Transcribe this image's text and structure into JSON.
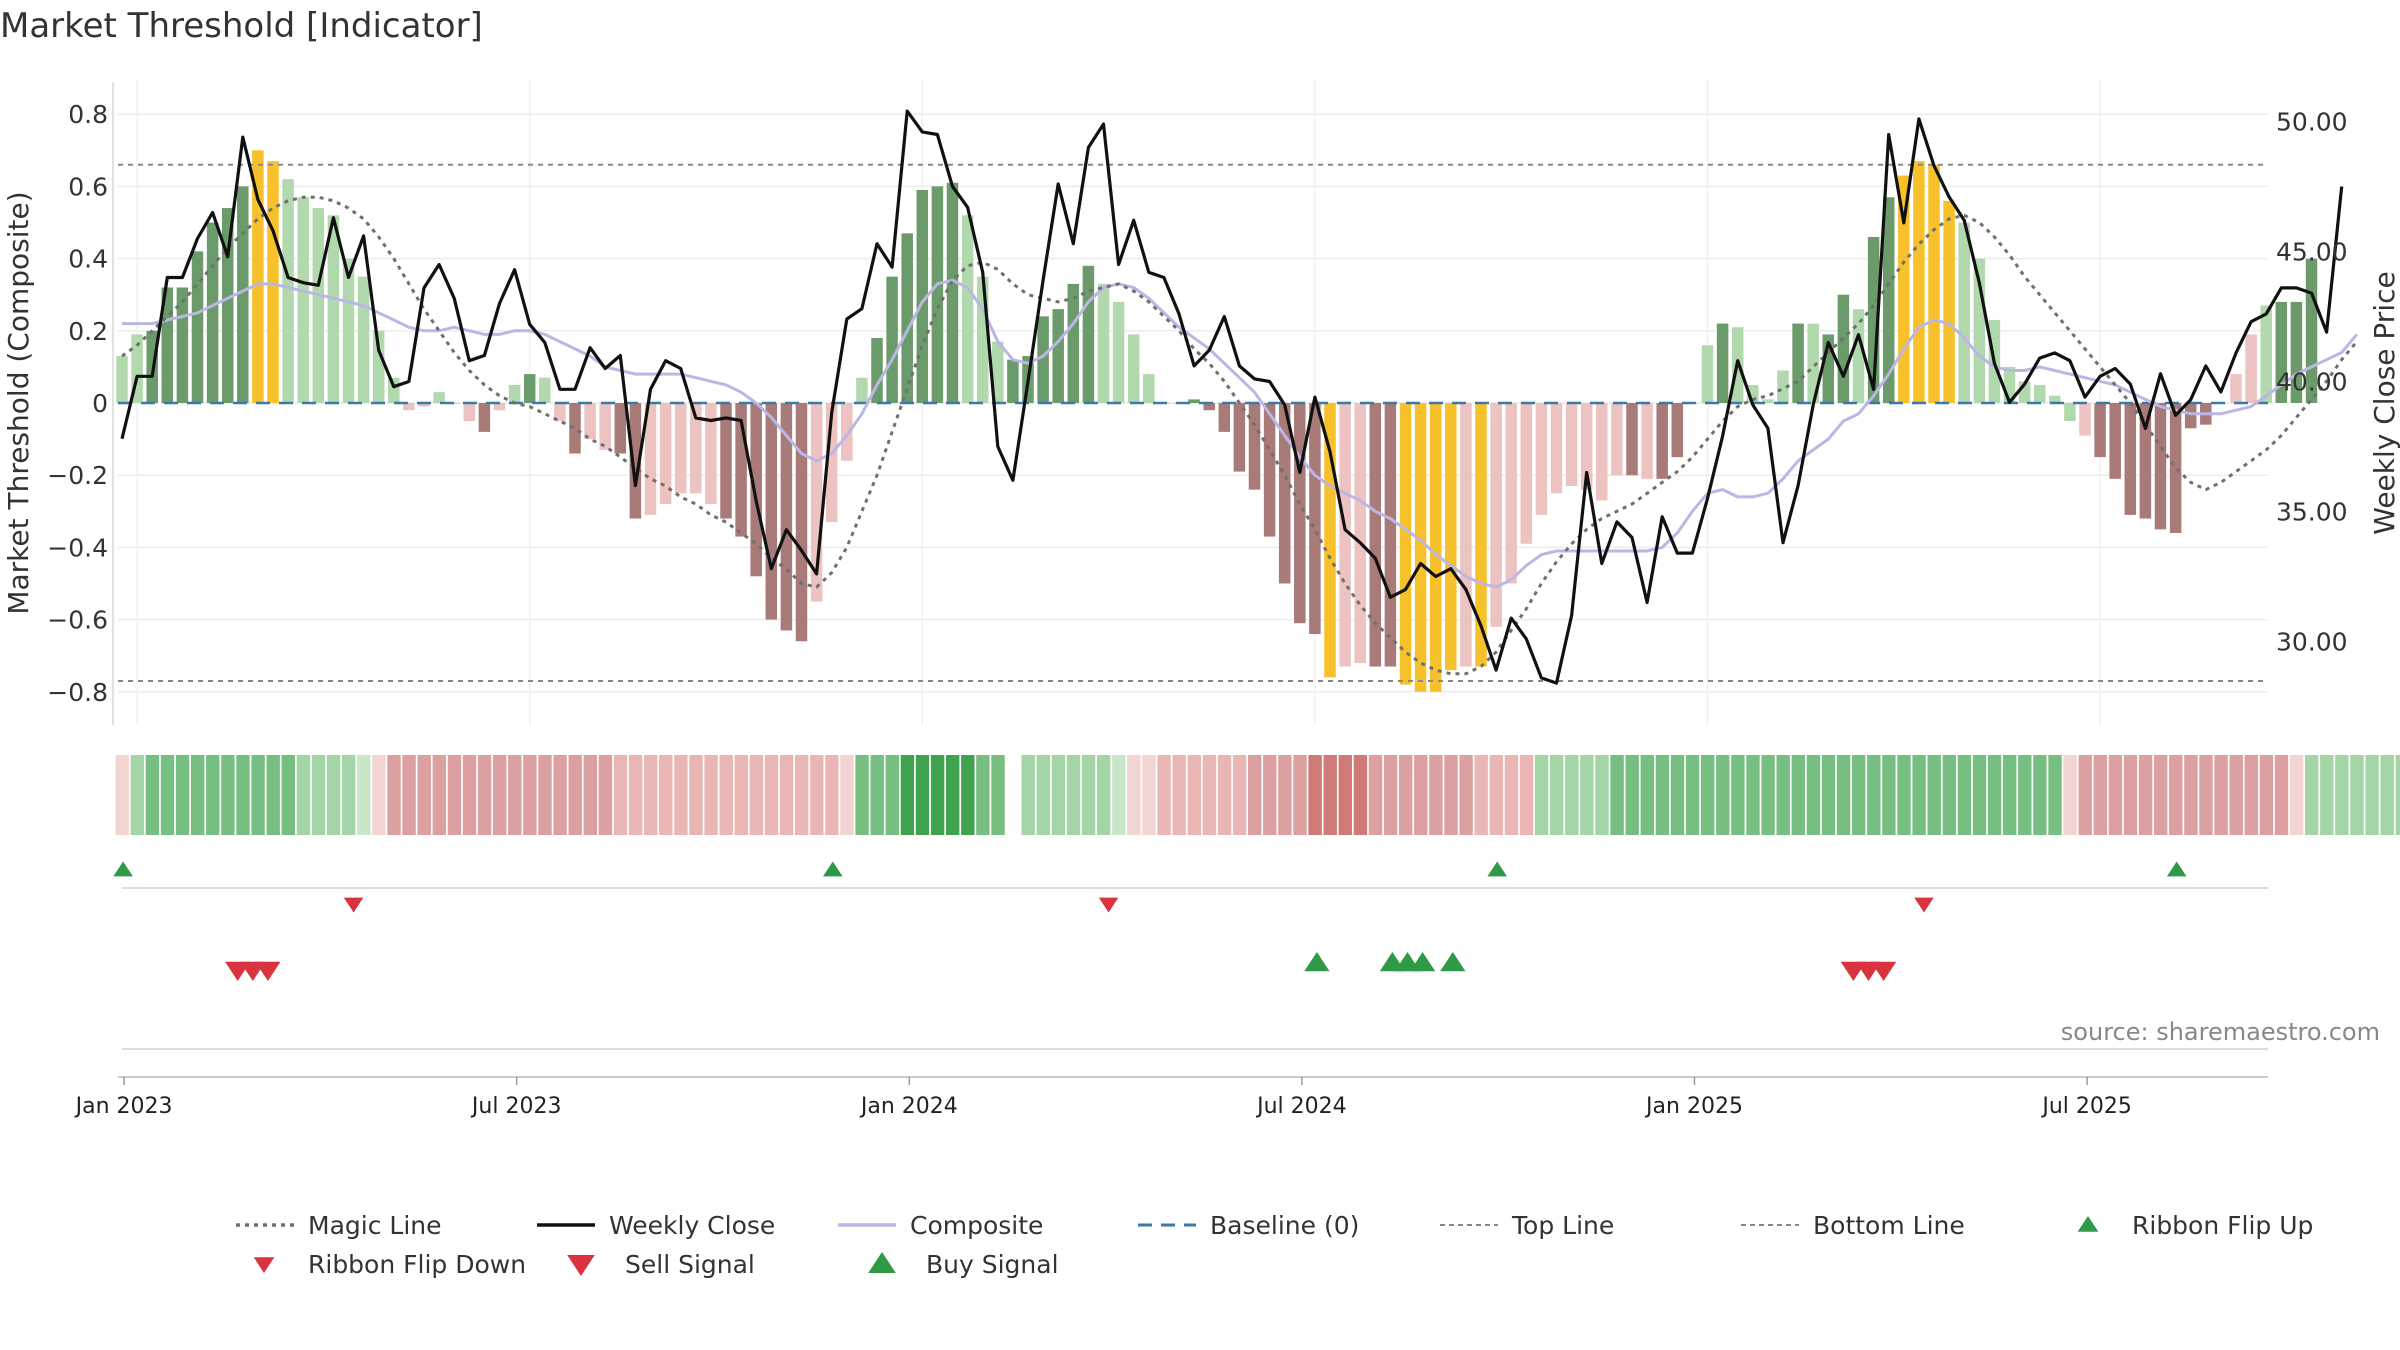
{
  "chart_data": {
    "type": "bar",
    "title": "Market Threshold [Indicator]",
    "ylabel": "Market Threshold (Composite)",
    "y2label": "Weekly Close Price",
    "source": "source: sharemaestro.com",
    "ylim": [
      -0.9,
      0.9
    ],
    "y2lim": [
      27.5,
      51.5
    ],
    "y_ticks": [
      0.8,
      0.6,
      0.4,
      0.2,
      0,
      -0.2,
      -0.4,
      -0.6,
      -0.8
    ],
    "y_tick_labels": [
      "0.8",
      "0.6",
      "0.4",
      "0.2",
      "0",
      "−0.2",
      "−0.4",
      "−0.6",
      "−0.8"
    ],
    "y2_ticks": [
      50,
      45,
      40,
      35,
      30
    ],
    "y2_tick_labels": [
      "50.00",
      "45.00",
      "40.00",
      "35.00",
      "30.00"
    ],
    "x_ticks": [
      "Jan 2023",
      "Jul 2023",
      "Jan 2024",
      "Jul 2024",
      "Jan 2025",
      "Jul 2025"
    ],
    "x_tick_weeks": [
      1,
      27,
      53,
      79,
      105,
      131
    ],
    "top_line": 0.66,
    "bottom_line": -0.77,
    "colors": {
      "bull_dark": "#6b9a6b",
      "bull_light": "#b2d8ad",
      "bear_dark": "#a87a78",
      "bear_light": "#ecc3c0",
      "extreme": "#f7c12b",
      "weekly_close": "#111111",
      "composite": "#bcb6e4",
      "magic_line": "#707070",
      "baseline": "#3a79a8",
      "threshold_lines": "#888888",
      "buy": "#2e9a48",
      "sell": "#d8333f"
    },
    "weeks": 144,
    "bars": [
      0.13,
      0.19,
      0.2,
      0.32,
      0.32,
      0.42,
      0.5,
      0.54,
      0.6,
      0.7,
      0.67,
      0.62,
      0.57,
      0.54,
      0.52,
      0.4,
      0.35,
      0.2,
      0.07,
      -0.02,
      -0.01,
      0.03,
      0.0,
      -0.05,
      -0.08,
      -0.02,
      0.05,
      0.08,
      0.07,
      -0.05,
      -0.14,
      -0.1,
      -0.13,
      -0.14,
      -0.32,
      -0.31,
      -0.28,
      -0.25,
      -0.25,
      -0.28,
      -0.32,
      -0.37,
      -0.48,
      -0.6,
      -0.63,
      -0.66,
      -0.55,
      -0.33,
      -0.16,
      0.07,
      0.18,
      0.35,
      0.47,
      0.59,
      0.6,
      0.61,
      0.52,
      0.35,
      0.17,
      0.12,
      0.13,
      0.24,
      0.26,
      0.33,
      0.38,
      0.33,
      0.28,
      0.19,
      0.08,
      0.0,
      0.0,
      0.01,
      -0.02,
      -0.08,
      -0.19,
      -0.24,
      -0.37,
      -0.5,
      -0.61,
      -0.64,
      -0.76,
      -0.73,
      -0.72,
      -0.73,
      -0.73,
      -0.78,
      -0.8,
      -0.8,
      -0.74,
      -0.73,
      -0.73,
      -0.62,
      -0.5,
      -0.39,
      -0.31,
      -0.25,
      -0.23,
      -0.24,
      -0.27,
      -0.2,
      -0.2,
      -0.21,
      -0.21,
      -0.15,
      0.0,
      0.16,
      0.22,
      0.21,
      0.05,
      0.01,
      0.09,
      0.22,
      0.22,
      0.19,
      0.3,
      0.26,
      0.46,
      0.57,
      0.63,
      0.67,
      0.66,
      0.56,
      0.5,
      0.4,
      0.23,
      0.1,
      0.06,
      0.05,
      0.02,
      -0.05,
      -0.09,
      -0.15,
      -0.21,
      -0.31,
      -0.32,
      -0.35,
      -0.36,
      -0.07,
      -0.06,
      0.0,
      0.08,
      0.19,
      0.27,
      0.28,
      0.28,
      0.4
    ],
    "bar_styles": [
      "bl",
      "bl",
      "bd",
      "bd",
      "bd",
      "bd",
      "bd",
      "bd",
      "bd",
      "ex",
      "ex",
      "bl",
      "bl",
      "bl",
      "bl",
      "bl",
      "bl",
      "bl",
      "bl",
      "rl",
      "rl",
      "bl",
      "bl",
      "rl",
      "rd",
      "rl",
      "bl",
      "bd",
      "bl",
      "rl",
      "rd",
      "rl",
      "rl",
      "rd",
      "rd",
      "rl",
      "rl",
      "rl",
      "rl",
      "rl",
      "rd",
      "rd",
      "rd",
      "rd",
      "rd",
      "rd",
      "rl",
      "rl",
      "rl",
      "bl",
      "bd",
      "bd",
      "bd",
      "bd",
      "bd",
      "bd",
      "bl",
      "bl",
      "bl",
      "bd",
      "bd",
      "bd",
      "bd",
      "bd",
      "bd",
      "bl",
      "bl",
      "bl",
      "bl",
      "bl",
      "bl",
      "bd",
      "rd",
      "rd",
      "rd",
      "rd",
      "rd",
      "rd",
      "rd",
      "rd",
      "ex",
      "rl",
      "rl",
      "rd",
      "rd",
      "ex",
      "ex",
      "ex",
      "ex",
      "rl",
      "ex",
      "rl",
      "rl",
      "rl",
      "rl",
      "rl",
      "rl",
      "rl",
      "rl",
      "rl",
      "rd",
      "rl",
      "rd",
      "rd",
      "rl",
      "bl",
      "bd",
      "bl",
      "bl",
      "bl",
      "bl",
      "bd",
      "bl",
      "bd",
      "bd",
      "bl",
      "bd",
      "bd",
      "ex",
      "ex",
      "ex",
      "ex",
      "bl",
      "bl",
      "bl",
      "bl",
      "bl",
      "bl",
      "bl",
      "bl",
      "rl",
      "rd",
      "rd",
      "rd",
      "rd",
      "rd",
      "rd",
      "rd",
      "rd",
      "rl",
      "rl",
      "rl",
      "bl",
      "bd",
      "bd",
      "bd",
      "bd",
      "bd"
    ],
    "series": [
      {
        "name": "Magic Line",
        "style": "dotted",
        "values": [
          0.13,
          0.16,
          0.2,
          0.24,
          0.28,
          0.33,
          0.38,
          0.43,
          0.47,
          0.51,
          0.54,
          0.56,
          0.57,
          0.57,
          0.56,
          0.54,
          0.51,
          0.46,
          0.4,
          0.33,
          0.26,
          0.2,
          0.14,
          0.09,
          0.05,
          0.02,
          0.0,
          -0.01,
          -0.03,
          -0.05,
          -0.07,
          -0.1,
          -0.12,
          -0.15,
          -0.18,
          -0.21,
          -0.23,
          -0.26,
          -0.28,
          -0.31,
          -0.33,
          -0.36,
          -0.39,
          -0.43,
          -0.46,
          -0.5,
          -0.51,
          -0.47,
          -0.4,
          -0.3,
          -0.2,
          -0.08,
          0.04,
          0.16,
          0.26,
          0.34,
          0.38,
          0.39,
          0.37,
          0.33,
          0.3,
          0.29,
          0.28,
          0.29,
          0.31,
          0.32,
          0.33,
          0.31,
          0.28,
          0.24,
          0.2,
          0.15,
          0.11,
          0.06,
          0.0,
          -0.06,
          -0.13,
          -0.2,
          -0.28,
          -0.35,
          -0.43,
          -0.5,
          -0.56,
          -0.61,
          -0.65,
          -0.69,
          -0.72,
          -0.74,
          -0.75,
          -0.75,
          -0.73,
          -0.69,
          -0.63,
          -0.57,
          -0.5,
          -0.44,
          -0.39,
          -0.35,
          -0.32,
          -0.3,
          -0.28,
          -0.25,
          -0.22,
          -0.19,
          -0.15,
          -0.1,
          -0.05,
          -0.01,
          0.01,
          0.02,
          0.04,
          0.06,
          0.1,
          0.14,
          0.18,
          0.22,
          0.27,
          0.33,
          0.39,
          0.44,
          0.48,
          0.51,
          0.52,
          0.5,
          0.46,
          0.41,
          0.35,
          0.3,
          0.25,
          0.2,
          0.15,
          0.1,
          0.05,
          0.0,
          -0.06,
          -0.12,
          -0.18,
          -0.22,
          -0.24,
          -0.22,
          -0.19,
          -0.16,
          -0.13,
          -0.09,
          -0.04,
          0.01,
          0.06,
          0.12,
          0.17
        ]
      },
      {
        "name": "Weekly Close",
        "style": "solid",
        "values": [
          37.8,
          40.2,
          40.2,
          44.0,
          44.0,
          45.5,
          46.5,
          44.8,
          49.4,
          47.0,
          45.8,
          44.0,
          43.8,
          43.7,
          46.3,
          44.0,
          45.6,
          41.2,
          39.8,
          40.0,
          43.6,
          44.5,
          43.2,
          40.8,
          41.0,
          43.0,
          44.3,
          42.2,
          41.5,
          39.7,
          39.7,
          41.3,
          40.5,
          41.0,
          36.0,
          39.7,
          40.8,
          40.5,
          38.6,
          38.5,
          38.6,
          38.5,
          35.4,
          32.8,
          34.3,
          33.5,
          32.6,
          38.8,
          42.4,
          42.8,
          45.3,
          44.4,
          50.4,
          49.6,
          49.5,
          47.5,
          46.7,
          44.2,
          37.5,
          36.2,
          40.0,
          43.9,
          47.6,
          45.3,
          49.0,
          49.9,
          44.5,
          46.2,
          44.2,
          44.0,
          42.6,
          40.6,
          41.2,
          42.5,
          40.6,
          40.1,
          40.0,
          39.1,
          36.5,
          39.4,
          37.3,
          34.3,
          33.8,
          33.2,
          31.7,
          32.0,
          33.0,
          32.5,
          32.8,
          32.0,
          30.6,
          28.9,
          30.9,
          30.1,
          28.6,
          28.4,
          31.0,
          36.5,
          33.0,
          34.6,
          34.0,
          31.5,
          34.8,
          33.4,
          33.4,
          35.5,
          37.9,
          40.8,
          39.1,
          38.2,
          33.8,
          36.0,
          39.1,
          41.5,
          40.2,
          41.8,
          39.7,
          49.5,
          46.1,
          50.1,
          48.3,
          47.1,
          46.2,
          43.8,
          40.7,
          39.2,
          39.9,
          40.9,
          41.1,
          40.8,
          39.4,
          40.2,
          40.5,
          39.9,
          38.2,
          40.3,
          38.7,
          39.3,
          40.6,
          39.6,
          41.1,
          42.3,
          42.6,
          43.6,
          43.6,
          43.4,
          41.9,
          47.5
        ]
      },
      {
        "name": "Composite",
        "style": "solid",
        "values": [
          0.22,
          0.22,
          0.22,
          0.23,
          0.24,
          0.25,
          0.27,
          0.29,
          0.31,
          0.33,
          0.33,
          0.32,
          0.31,
          0.3,
          0.29,
          0.28,
          0.27,
          0.25,
          0.23,
          0.21,
          0.2,
          0.2,
          0.21,
          0.2,
          0.19,
          0.19,
          0.2,
          0.2,
          0.19,
          0.17,
          0.15,
          0.13,
          0.1,
          0.09,
          0.08,
          0.08,
          0.08,
          0.08,
          0.07,
          0.06,
          0.05,
          0.03,
          0.0,
          -0.04,
          -0.09,
          -0.14,
          -0.16,
          -0.14,
          -0.09,
          -0.03,
          0.05,
          0.12,
          0.2,
          0.28,
          0.33,
          0.34,
          0.32,
          0.26,
          0.17,
          0.12,
          0.11,
          0.13,
          0.17,
          0.22,
          0.28,
          0.32,
          0.33,
          0.32,
          0.29,
          0.25,
          0.21,
          0.18,
          0.15,
          0.11,
          0.07,
          0.03,
          -0.03,
          -0.09,
          -0.15,
          -0.2,
          -0.23,
          -0.25,
          -0.27,
          -0.3,
          -0.32,
          -0.35,
          -0.38,
          -0.42,
          -0.45,
          -0.48,
          -0.5,
          -0.51,
          -0.49,
          -0.45,
          -0.42,
          -0.41,
          -0.41,
          -0.41,
          -0.41,
          -0.41,
          -0.41,
          -0.41,
          -0.4,
          -0.36,
          -0.3,
          -0.25,
          -0.24,
          -0.26,
          -0.26,
          -0.25,
          -0.21,
          -0.16,
          -0.13,
          -0.1,
          -0.05,
          -0.03,
          0.02,
          0.08,
          0.15,
          0.21,
          0.23,
          0.22,
          0.18,
          0.13,
          0.1,
          0.09,
          0.09,
          0.1,
          0.09,
          0.08,
          0.07,
          0.06,
          0.05,
          0.03,
          0.01,
          -0.01,
          -0.02,
          -0.03,
          -0.03,
          -0.03,
          -0.02,
          -0.01,
          0.02,
          0.05,
          0.08,
          0.1,
          0.12,
          0.14,
          0.19
        ]
      },
      {
        "name": "Baseline (0)",
        "style": "dashed",
        "values": [
          0
        ]
      },
      {
        "name": "Top Line",
        "style": "dotted",
        "values": [
          0.66
        ]
      },
      {
        "name": "Bottom Line",
        "style": "dotted",
        "values": [
          -0.77
        ]
      }
    ],
    "ribbon": [
      "lr",
      "bl",
      "bm",
      "bm",
      "bm",
      "bm",
      "bm",
      "bm",
      "bm",
      "bm",
      "bm",
      "bm",
      "bl",
      "bl",
      "bl",
      "bl",
      "lg",
      "lr",
      "rm",
      "rm",
      "rm",
      "rm",
      "rm",
      "rm",
      "rm",
      "rm",
      "rm",
      "rm",
      "rm",
      "rm",
      "rm",
      "rm",
      "rm",
      "rl",
      "rl",
      "rl",
      "rl",
      "rl",
      "rl",
      "rl",
      "rl",
      "rl",
      "rl",
      "rl",
      "rl",
      "rl",
      "rl",
      "rl",
      "lr",
      "bm",
      "bm",
      "bm",
      "bs",
      "bs",
      "bs",
      "bs",
      "bs",
      "bm",
      "bm",
      "gap",
      "bl",
      "bl",
      "bl",
      "bl",
      "bl",
      "bl",
      "lg",
      "lr",
      "lr",
      "rl",
      "rl",
      "rl",
      "rl",
      "rl",
      "rl",
      "rm",
      "rm",
      "rm",
      "rm",
      "rd",
      "rd",
      "rd",
      "rd",
      "rm",
      "rm",
      "rm",
      "rm",
      "rm",
      "rm",
      "rm",
      "rl",
      "rl",
      "rl",
      "rl",
      "bl",
      "bl",
      "bl",
      "bl",
      "bl",
      "bm",
      "bm",
      "bm",
      "bm",
      "bm",
      "bm",
      "bm",
      "bm",
      "bm",
      "bm",
      "bm",
      "bm",
      "bm",
      "bm",
      "bm",
      "bm",
      "bm",
      "bm",
      "bm",
      "bm",
      "bm",
      "bm",
      "bm",
      "bm",
      "bm",
      "bm",
      "bm",
      "bm",
      "bm",
      "bm",
      "lr",
      "rm",
      "rm",
      "rm",
      "rm",
      "rm",
      "rm",
      "rm",
      "rm",
      "rm",
      "rm",
      "rm",
      "rm",
      "rm",
      "rm",
      "lr",
      "bl",
      "bl",
      "bl",
      "bl",
      "bl",
      "bl",
      "bl"
    ],
    "ribbon_colors": {
      "bs": "#3fa350",
      "bm": "#77bf80",
      "bl": "#a3d5a6",
      "lg": "#c9e7c8",
      "lr": "#f2d4d3",
      "rl": "#e9b6b5",
      "rm": "#dba09f",
      "rd": "#cf7a76",
      "gap": "#ffffff"
    },
    "ribbon_flip_up_weeks": [
      1,
      48,
      92,
      137
    ],
    "ribbon_flip_down_weeks": [
      16,
      66,
      120
    ],
    "sell_signal_weeks": [
      7,
      8,
      9,
      114,
      115,
      116
    ],
    "buy_signal_weeks": [
      79,
      84,
      85,
      86,
      88
    ],
    "legend": [
      {
        "label": "Magic Line",
        "kind": "dotted",
        "color": "#707070"
      },
      {
        "label": "Weekly Close",
        "kind": "solid",
        "color": "#111111"
      },
      {
        "label": "Composite",
        "kind": "solid",
        "color": "#bcb6e4"
      },
      {
        "label": "Baseline (0)",
        "kind": "dashed",
        "color": "#3a79a8"
      },
      {
        "label": "Top Line",
        "kind": "dotted-thin",
        "color": "#888888"
      },
      {
        "label": "Bottom Line",
        "kind": "dotted-thin",
        "color": "#888888"
      },
      {
        "label": "Ribbon Flip Up",
        "kind": "tri-up-small",
        "color": "#2e9a48"
      },
      {
        "label": "Ribbon Flip Down",
        "kind": "tri-down-small",
        "color": "#d8333f"
      },
      {
        "label": "Sell Signal",
        "kind": "tri-down",
        "color": "#d8333f"
      },
      {
        "label": "Buy Signal",
        "kind": "tri-up",
        "color": "#2e9a48"
      }
    ],
    "legend_placement": "bottom",
    "grid": true
  }
}
